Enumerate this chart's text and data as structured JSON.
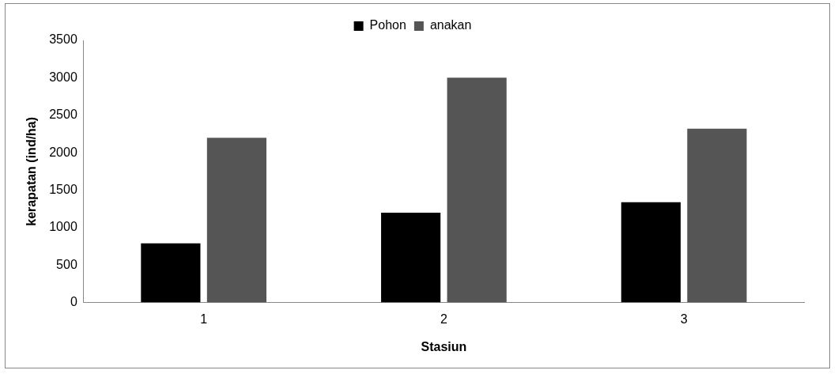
{
  "chart_data": {
    "type": "bar",
    "xlabel": "Stasiun",
    "ylabel": "kerapatan (ind/ha)",
    "categories": [
      "1",
      "2",
      "3"
    ],
    "series": [
      {
        "name": "Pohon",
        "color": "#000000",
        "values": [
          790,
          1200,
          1340
        ]
      },
      {
        "name": "anakan",
        "color": "#555555",
        "values": [
          2200,
          3000,
          2320
        ]
      }
    ],
    "ylim": [
      0,
      3500
    ],
    "yticks": [
      0,
      500,
      1000,
      1500,
      2000,
      2500,
      3000,
      3500
    ],
    "grid": false,
    "legend": "top"
  }
}
